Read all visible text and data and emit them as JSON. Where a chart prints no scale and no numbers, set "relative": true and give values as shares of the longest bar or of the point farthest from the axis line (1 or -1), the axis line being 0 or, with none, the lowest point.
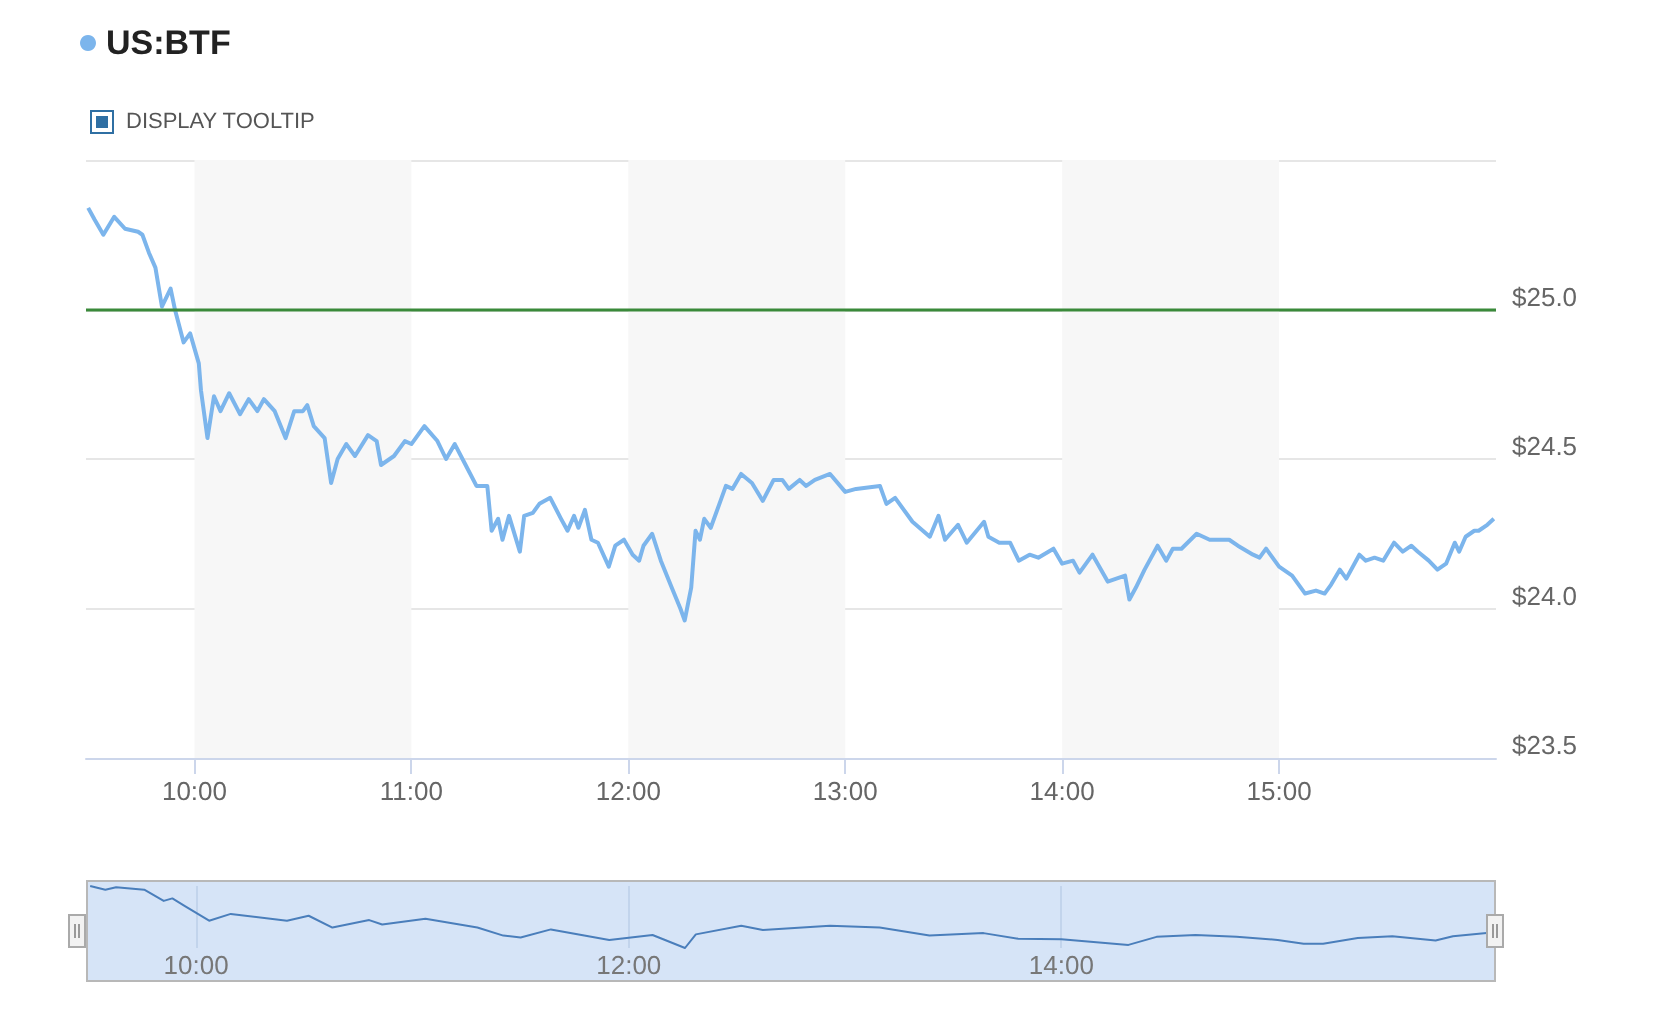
{
  "chart_data": [
    {
      "type": "line",
      "legend": "top left",
      "grid": "y",
      "annotations": [
        "DISPLAY TOOLTIP"
      ],
      "xlim": [
        9.5,
        16
      ],
      "xticks": [
        {
          "value": 10,
          "label": "10:00"
        },
        {
          "value": 11,
          "label": "11:00"
        },
        {
          "value": 12,
          "label": "12:00"
        },
        {
          "value": 13,
          "label": "13:00"
        },
        {
          "value": 14,
          "label": "14:00"
        },
        {
          "value": 15,
          "label": "15:00"
        }
      ],
      "ylim": [
        23.5,
        25.5
      ],
      "yticks": [
        {
          "value": 23.5,
          "label": "$23.5"
        },
        {
          "value": 24,
          "label": "$24.0"
        },
        {
          "value": 24.5,
          "label": "$24.5"
        },
        {
          "value": 25,
          "label": "$25.0"
        },
        {
          "value": 25.5,
          "label": null
        }
      ],
      "ref_lines": [
        {
          "axis": "y",
          "value": 25,
          "color": "#3a8a3a"
        }
      ],
      "bands": [
        {
          "axis": "x",
          "from": 10,
          "to": 11,
          "color": "#f7f7f7"
        },
        {
          "axis": "x",
          "from": 12,
          "to": 13,
          "color": "#f7f7f7"
        },
        {
          "axis": "x",
          "from": 14,
          "to": 15,
          "color": "#f7f7f7"
        }
      ],
      "series": [
        {
          "name": "US:BTF",
          "color": "#7cb5ec",
          "x": [
            9.51,
            9.54,
            9.58,
            9.63,
            9.68,
            9.74,
            9.76,
            9.79,
            9.82,
            9.85,
            9.89,
            9.91,
            9.95,
            9.98,
            10.02,
            10.03,
            10.06,
            10.09,
            10.12,
            10.16,
            10.21,
            10.25,
            10.29,
            10.32,
            10.37,
            10.42,
            10.46,
            10.5,
            10.52,
            10.55,
            10.6,
            10.63,
            10.66,
            10.7,
            10.74,
            10.8,
            10.84,
            10.86,
            10.92,
            10.97,
            11.0,
            11.06,
            11.12,
            11.16,
            11.2,
            11.25,
            11.3,
            11.35,
            11.37,
            11.4,
            11.42,
            11.45,
            11.5,
            11.52,
            11.56,
            11.59,
            11.64,
            11.69,
            11.72,
            11.75,
            11.77,
            11.8,
            11.83,
            11.86,
            11.91,
            11.94,
            11.98,
            12.02,
            12.05,
            12.07,
            12.11,
            12.15,
            12.2,
            12.24,
            12.26,
            12.29,
            12.31,
            12.33,
            12.35,
            12.38,
            12.42,
            12.45,
            12.48,
            12.52,
            12.57,
            12.62,
            12.67,
            12.71,
            12.74,
            12.79,
            12.82,
            12.86,
            12.93,
            13.0,
            13.05,
            13.16,
            13.19,
            13.23,
            13.31,
            13.39,
            13.43,
            13.46,
            13.52,
            13.56,
            13.64,
            13.66,
            13.71,
            13.76,
            13.8,
            13.85,
            13.89,
            13.96,
            14.0,
            14.05,
            14.08,
            14.14,
            14.21,
            14.25,
            14.29,
            14.31,
            14.34,
            14.38,
            14.44,
            14.48,
            14.51,
            14.55,
            14.62,
            14.68,
            14.77,
            14.81,
            14.88,
            14.91,
            14.94,
            15.0,
            15.06,
            15.12,
            15.17,
            15.21,
            15.24,
            15.28,
            15.31,
            15.37,
            15.4,
            15.44,
            15.48,
            15.53,
            15.57,
            15.61,
            15.64,
            15.69,
            15.73,
            15.77,
            15.81,
            15.83,
            15.86,
            15.9,
            15.92,
            15.96,
            15.99
          ],
          "values": [
            25.34,
            25.3,
            25.25,
            25.31,
            25.27,
            25.26,
            25.25,
            25.19,
            25.14,
            25.01,
            25.07,
            25.0,
            24.89,
            24.92,
            24.82,
            24.73,
            24.57,
            24.71,
            24.66,
            24.72,
            24.65,
            24.7,
            24.66,
            24.7,
            24.66,
            24.57,
            24.66,
            24.66,
            24.68,
            24.61,
            24.57,
            24.42,
            24.5,
            24.55,
            24.51,
            24.58,
            24.56,
            24.48,
            24.51,
            24.56,
            24.55,
            24.61,
            24.56,
            24.5,
            24.55,
            24.48,
            24.41,
            24.41,
            24.26,
            24.3,
            24.23,
            24.31,
            24.19,
            24.31,
            24.32,
            24.35,
            24.37,
            24.3,
            24.26,
            24.31,
            24.27,
            24.33,
            24.23,
            24.22,
            24.14,
            24.21,
            24.23,
            24.18,
            24.16,
            24.21,
            24.25,
            24.16,
            24.07,
            24.0,
            23.96,
            24.07,
            24.26,
            24.23,
            24.3,
            24.27,
            24.35,
            24.41,
            24.4,
            24.45,
            24.42,
            24.36,
            24.43,
            24.43,
            24.4,
            24.43,
            24.41,
            24.43,
            24.45,
            24.39,
            24.4,
            24.41,
            24.35,
            24.37,
            24.29,
            24.24,
            24.31,
            24.23,
            24.28,
            24.22,
            24.29,
            24.24,
            24.22,
            24.22,
            24.16,
            24.18,
            24.17,
            24.2,
            24.15,
            24.16,
            24.12,
            24.18,
            24.09,
            24.1,
            24.11,
            24.03,
            24.07,
            24.13,
            24.21,
            24.16,
            24.2,
            24.2,
            24.25,
            24.23,
            24.23,
            24.21,
            24.18,
            24.17,
            24.2,
            24.14,
            24.11,
            24.05,
            24.06,
            24.05,
            24.08,
            24.13,
            24.1,
            24.18,
            24.16,
            24.17,
            24.16,
            24.22,
            24.19,
            24.21,
            24.19,
            24.16,
            24.13,
            24.15,
            24.22,
            24.19,
            24.24,
            24.26,
            24.26,
            24.28,
            24.3
          ]
        }
      ]
    },
    {
      "type": "line",
      "relative": true,
      "grid": "x",
      "tick_labels": "x",
      "xlim": [
        9.5,
        16
      ],
      "xticks": [
        {
          "value": 10,
          "label": "10:00"
        },
        {
          "value": 12,
          "label": "12:00"
        },
        {
          "value": 14,
          "label": "14:00"
        }
      ],
      "series": [
        {
          "color": "#4a7ebb",
          "x": [
            9.51,
            9.58,
            9.63,
            9.76,
            9.85,
            9.89,
            9.95,
            10.06,
            10.16,
            10.42,
            10.52,
            10.63,
            10.8,
            10.86,
            11.06,
            11.3,
            11.42,
            11.5,
            11.64,
            11.91,
            12.11,
            12.26,
            12.31,
            12.52,
            12.62,
            12.93,
            13.16,
            13.39,
            13.64,
            13.8,
            14.0,
            14.31,
            14.44,
            14.62,
            14.81,
            15.0,
            15.12,
            15.21,
            15.37,
            15.53,
            15.73,
            15.81,
            15.99
          ],
          "values": [
            1.0,
            0.94,
            0.98,
            0.94,
            0.76,
            0.8,
            0.67,
            0.44,
            0.55,
            0.44,
            0.52,
            0.33,
            0.45,
            0.38,
            0.47,
            0.33,
            0.2,
            0.17,
            0.3,
            0.13,
            0.21,
            0.0,
            0.22,
            0.36,
            0.29,
            0.36,
            0.33,
            0.2,
            0.24,
            0.15,
            0.14,
            0.05,
            0.18,
            0.21,
            0.18,
            0.13,
            0.07,
            0.07,
            0.16,
            0.19,
            0.12,
            0.19,
            0.25
          ]
        }
      ]
    }
  ]
}
